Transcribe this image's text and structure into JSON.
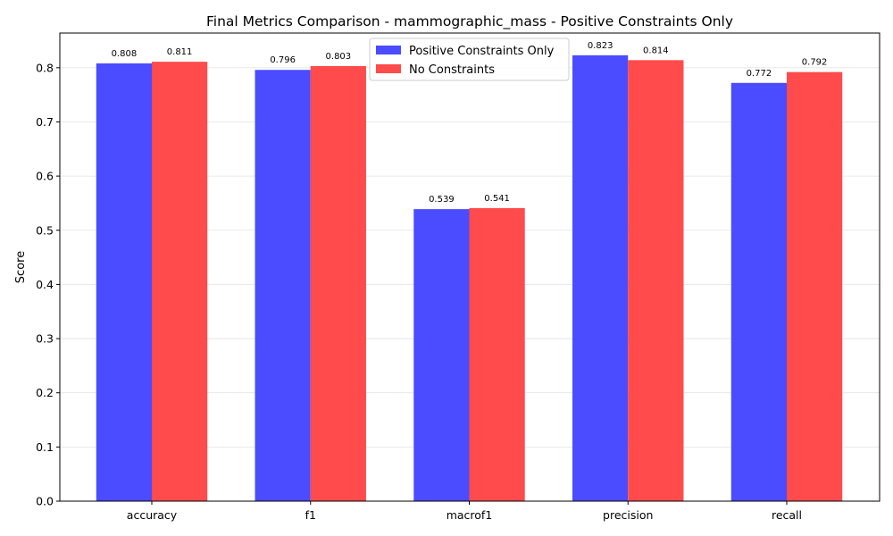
{
  "chart_data": {
    "type": "bar",
    "title": "Final Metrics Comparison - mammographic_mass - Positive Constraints Only",
    "xlabel": "",
    "ylabel": "Score",
    "categories": [
      "accuracy",
      "f1",
      "macrof1",
      "precision",
      "recall"
    ],
    "series": [
      {
        "name": "Positive Constraints Only",
        "color": "#4b4bff",
        "values": [
          0.808,
          0.796,
          0.539,
          0.823,
          0.772
        ]
      },
      {
        "name": "No Constraints",
        "color": "#ff4b4b",
        "values": [
          0.811,
          0.803,
          0.541,
          0.814,
          0.792
        ]
      }
    ],
    "ylim": [
      0,
      0.864
    ],
    "yticks": [
      "0.0",
      "0.1",
      "0.2",
      "0.3",
      "0.4",
      "0.5",
      "0.6",
      "0.7",
      "0.8"
    ],
    "grid": true,
    "legend_position": "top-center"
  }
}
